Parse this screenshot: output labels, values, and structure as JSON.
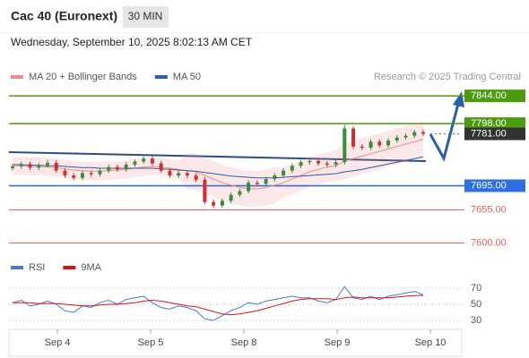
{
  "header": {
    "title": "Cac 40 (Euronext)",
    "interval": "30 MIN",
    "timestamp": "Wednesday, September 10, 2025 8:02:13 AM CET"
  },
  "chart_data": [
    {
      "type": "candlestick",
      "copyright": "Research © 2025 Trading Central",
      "day_labels": [
        "Sep 4",
        "Sep 5",
        "Sep 8",
        "Sep 9",
        "Sep 10"
      ],
      "up_color": "#3c8c3c",
      "down_color": "#c8332f",
      "open": [
        7724,
        7727,
        7731,
        7725,
        7729,
        7733,
        7720,
        7712,
        7708,
        7716,
        7714,
        7720,
        7726,
        7722,
        7730,
        7735,
        7740,
        7732,
        7720,
        7712,
        7716,
        7712,
        7705,
        7668,
        7662,
        7670,
        7680,
        7686,
        7700,
        7698,
        7706,
        7712,
        7720,
        7728,
        7734,
        7736,
        7732,
        7730,
        7734,
        7790,
        7760,
        7758,
        7768,
        7762,
        7770,
        7775,
        7778,
        7784
      ],
      "high": [
        7731,
        7735,
        7735,
        7733,
        7737,
        7737,
        7724,
        7716,
        7720,
        7720,
        7724,
        7730,
        7730,
        7734,
        7739,
        7744,
        7744,
        7736,
        7724,
        7720,
        7720,
        7716,
        7709,
        7672,
        7674,
        7684,
        7690,
        7704,
        7704,
        7710,
        7716,
        7724,
        7732,
        7738,
        7740,
        7740,
        7736,
        7738,
        7796,
        7794,
        7764,
        7772,
        7772,
        7774,
        7779,
        7782,
        7788,
        7788
      ],
      "low": [
        7720,
        7723,
        7721,
        7721,
        7725,
        7716,
        7708,
        7704,
        7704,
        7710,
        7710,
        7716,
        7718,
        7718,
        7726,
        7731,
        7728,
        7716,
        7708,
        7708,
        7708,
        7701,
        7664,
        7658,
        7658,
        7666,
        7676,
        7682,
        7694,
        7694,
        7702,
        7708,
        7716,
        7724,
        7730,
        7728,
        7726,
        7726,
        7730,
        7756,
        7754,
        7754,
        7758,
        7758,
        7766,
        7771,
        7774,
        7777
      ],
      "close": [
        7727,
        7731,
        7725,
        7729,
        7733,
        7720,
        7712,
        7708,
        7716,
        7714,
        7720,
        7726,
        7722,
        7730,
        7735,
        7740,
        7732,
        7720,
        7712,
        7716,
        7712,
        7705,
        7668,
        7662,
        7670,
        7680,
        7686,
        7700,
        7698,
        7706,
        7712,
        7720,
        7728,
        7734,
        7736,
        7732,
        7730,
        7734,
        7790,
        7760,
        7758,
        7768,
        7762,
        7770,
        7775,
        7778,
        7784,
        7781
      ],
      "series": [
        {
          "name": "MA 20 + Bollinger Bands",
          "color": "#f08a8a",
          "values": [
            7728,
            7728,
            7727,
            7727,
            7726,
            7725,
            7723,
            7721,
            7720,
            7719,
            7719,
            7720,
            7721,
            7722,
            7724,
            7726,
            7727,
            7726,
            7724,
            7722,
            7720,
            7718,
            7712,
            7706,
            7700,
            7696,
            7692,
            7690,
            7690,
            7692,
            7696,
            7700,
            7706,
            7712,
            7718,
            7722,
            7726,
            7728,
            7736,
            7740,
            7744,
            7748,
            7752,
            7756,
            7760,
            7764,
            7768,
            7772
          ],
          "upper": [
            7743,
            7743,
            7742,
            7742,
            7741,
            7740,
            7738,
            7736,
            7735,
            7734,
            7734,
            7735,
            7736,
            7737,
            7739,
            7741,
            7742,
            7741,
            7739,
            7737,
            7750,
            7748,
            7742,
            7736,
            7730,
            7726,
            7722,
            7720,
            7720,
            7722,
            7726,
            7725,
            7731,
            7737,
            7743,
            7747,
            7751,
            7753,
            7766,
            7770,
            7774,
            7778,
            7782,
            7786,
            7790,
            7794,
            7798,
            7802
          ],
          "lower": [
            7713,
            7713,
            7712,
            7712,
            7711,
            7710,
            7708,
            7706,
            7705,
            7704,
            7704,
            7705,
            7706,
            7707,
            7709,
            7711,
            7712,
            7711,
            7709,
            7707,
            7690,
            7688,
            7682,
            7676,
            7670,
            7666,
            7662,
            7660,
            7660,
            7662,
            7666,
            7675,
            7681,
            7687,
            7693,
            7697,
            7701,
            7703,
            7706,
            7710,
            7714,
            7718,
            7722,
            7726,
            7730,
            7734,
            7738,
            7742
          ]
        },
        {
          "name": "MA 50",
          "color": "#2b5ea7",
          "values": [
            7730,
            7730,
            7729,
            7729,
            7728,
            7728,
            7727,
            7726,
            7725,
            7725,
            7724,
            7724,
            7724,
            7724,
            7724,
            7724,
            7724,
            7723,
            7722,
            7721,
            7720,
            7719,
            7717,
            7715,
            7713,
            7711,
            7710,
            7709,
            7708,
            7708,
            7708,
            7709,
            7710,
            7711,
            7712,
            7713,
            7714,
            7715,
            7718,
            7720,
            7722,
            7725,
            7728,
            7731,
            7734,
            7737,
            7740,
            7743
          ]
        }
      ],
      "levels": [
        {
          "value": 7844,
          "label": "7844.00",
          "color": "#4c9a10",
          "style": "box"
        },
        {
          "value": 7798,
          "label": "7798.00",
          "color": "#4c9a10",
          "style": "box"
        },
        {
          "value": 7781,
          "label": "7781.00",
          "color": "#333333",
          "style": "current"
        },
        {
          "value": 7695,
          "label": "7695.00",
          "color": "#2f6fe0",
          "style": "box"
        },
        {
          "value": 7655,
          "label": "7655.00",
          "color": "#e06060",
          "style": "text"
        },
        {
          "value": 7600,
          "label": "7600.00",
          "color": "#e06060",
          "style": "text"
        }
      ],
      "ylim": [
        7580,
        7862
      ]
    },
    {
      "type": "line",
      "series": [
        {
          "name": "RSI",
          "color": "#4a78d0",
          "values": [
            52,
            55,
            48,
            50,
            54,
            50,
            42,
            40,
            48,
            46,
            52,
            55,
            50,
            56,
            58,
            60,
            52,
            46,
            44,
            48,
            46,
            42,
            32,
            30,
            36,
            42,
            46,
            52,
            50,
            54,
            56,
            58,
            60,
            58,
            58,
            54,
            52,
            56,
            72,
            58,
            56,
            60,
            56,
            60,
            62,
            64,
            66,
            62
          ]
        },
        {
          "name": "9MA",
          "color": "#e01010",
          "values": [
            52,
            52,
            52,
            51,
            51,
            51,
            50,
            49,
            48,
            48,
            49,
            50,
            50,
            51,
            52,
            54,
            55,
            54,
            52,
            50,
            48,
            47,
            44,
            41,
            38,
            37,
            38,
            40,
            42,
            45,
            48,
            51,
            54,
            56,
            57,
            57,
            57,
            56,
            58,
            59,
            58,
            58,
            58,
            58,
            59,
            60,
            61,
            61
          ]
        }
      ],
      "ylim": [
        20,
        80
      ],
      "yticks": [
        30,
        50,
        70
      ]
    }
  ]
}
